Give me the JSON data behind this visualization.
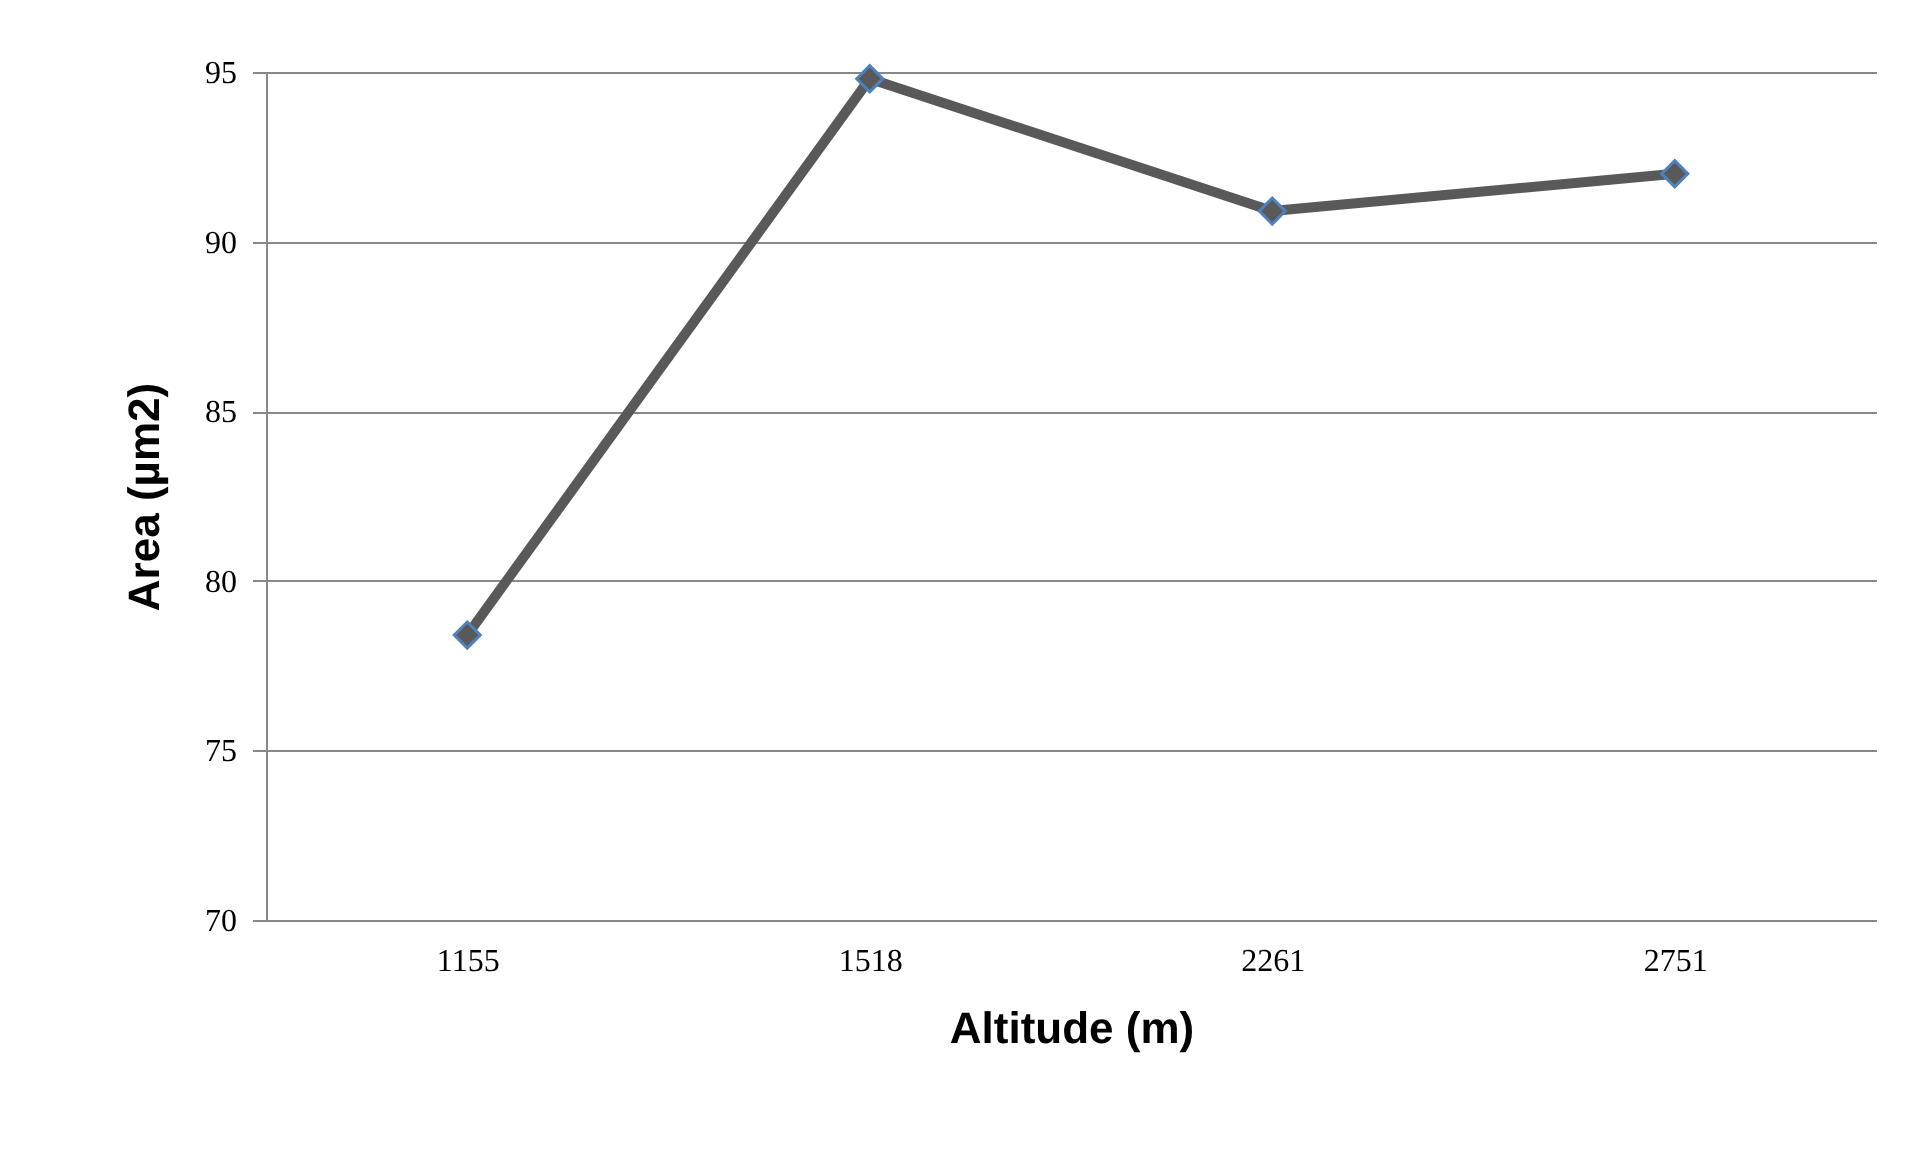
{
  "chart_data": {
    "type": "line",
    "xlabel": "Altitude (m)",
    "ylabel": "Area (µm2)",
    "categories": [
      "1155",
      "1518",
      "2261",
      "2751"
    ],
    "series": [
      {
        "color": "#595959",
        "values": [
          78.4,
          94.8,
          90.9,
          92.0
        ]
      }
    ],
    "ylim": [
      70,
      95
    ],
    "yticks": [
      70,
      75,
      80,
      85,
      90,
      95
    ],
    "grid": "y",
    "marker": "diamond",
    "line_style": "solid",
    "legend": false
  }
}
